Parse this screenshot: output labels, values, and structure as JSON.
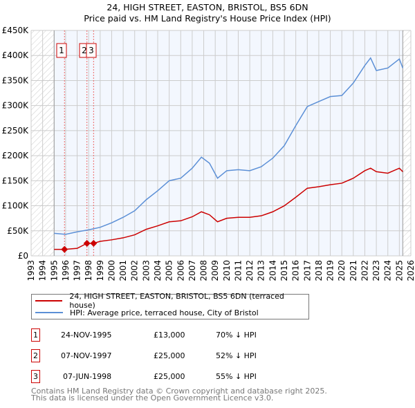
{
  "title": "24, HIGH STREET, EASTON, BRISTOL, BS5 6DN",
  "subtitle": "Price paid vs. HM Land Registry's House Price Index (HPI)",
  "chart_data": {
    "type": "line",
    "title": "24, HIGH STREET, EASTON, BRISTOL, BS5 6DN",
    "subtitle": "Price paid vs. HM Land Registry's House Price Index (HPI)",
    "xlim": [
      1993,
      2026
    ],
    "ylim": [
      0,
      450000
    ],
    "x_ticks": [
      "1993",
      "1994",
      "1995",
      "1996",
      "1997",
      "1998",
      "1999",
      "2000",
      "2001",
      "2002",
      "2003",
      "2004",
      "2005",
      "2006",
      "2007",
      "2008",
      "2009",
      "2010",
      "2011",
      "2012",
      "2013",
      "2014",
      "2015",
      "2016",
      "2017",
      "2018",
      "2019",
      "2020",
      "2021",
      "2022",
      "2023",
      "2024",
      "2025",
      "2026"
    ],
    "y_ticks": [
      "£0",
      "£50K",
      "£100K",
      "£150K",
      "£200K",
      "£250K",
      "£300K",
      "£350K",
      "£400K",
      "£450K"
    ],
    "grid": true,
    "series": [
      {
        "name": "24, HIGH STREET, EASTON, BRISTOL, BS5 6DN (terraced house)",
        "color": "#cc0000",
        "x": [
          1995,
          1995.9,
          1997,
          1997.85,
          1998.43,
          1999,
          2000,
          2001,
          2002,
          2003,
          2004,
          2005,
          2006,
          2007,
          2007.8,
          2008.5,
          2009.2,
          2010,
          2011,
          2012,
          2013,
          2014,
          2015,
          2016,
          2017,
          2018,
          2019,
          2020,
          2021,
          2022,
          2022.5,
          2023,
          2024,
          2025,
          2025.3
        ],
        "y": [
          13000,
          13000,
          15000,
          25000,
          25000,
          29000,
          32000,
          36000,
          42000,
          53000,
          60000,
          68000,
          70000,
          78000,
          88000,
          82000,
          68000,
          75000,
          77000,
          77000,
          80000,
          88000,
          100000,
          117000,
          135000,
          138000,
          142000,
          145000,
          155000,
          170000,
          175000,
          168000,
          165000,
          175000,
          168000
        ]
      },
      {
        "name": "HPI: Average price, terraced house, City of Bristol",
        "color": "#5b8fd6",
        "x": [
          1995,
          1996,
          1997,
          1998,
          1999,
          2000,
          2001,
          2002,
          2003,
          2004,
          2005,
          2006,
          2007,
          2007.8,
          2008.5,
          2009.2,
          2010,
          2011,
          2012,
          2013,
          2014,
          2015,
          2016,
          2017,
          2018,
          2019,
          2020,
          2021,
          2022,
          2022.5,
          2023,
          2024,
          2025,
          2025.3
        ],
        "y": [
          45000,
          43000,
          48000,
          52000,
          57000,
          66000,
          77000,
          90000,
          112000,
          130000,
          150000,
          155000,
          175000,
          197000,
          185000,
          155000,
          170000,
          172000,
          170000,
          178000,
          195000,
          220000,
          260000,
          298000,
          308000,
          318000,
          320000,
          345000,
          380000,
          395000,
          370000,
          375000,
          393000,
          375000
        ]
      }
    ],
    "sales": [
      {
        "label": "1",
        "x": 1995.9,
        "y": 13000
      },
      {
        "label": "2",
        "x": 1997.85,
        "y": 25000
      },
      {
        "label": "3",
        "x": 1998.43,
        "y": 25000
      }
    ],
    "legend_placement": "bottom"
  },
  "legend": [
    "24, HIGH STREET, EASTON, BRISTOL, BS5 6DN (terraced house)",
    "HPI: Average price, terraced house, City of Bristol"
  ],
  "table": [
    {
      "n": "1",
      "date": "24-NOV-1995",
      "price": "£13,000",
      "hpi": "70% ↓ HPI"
    },
    {
      "n": "2",
      "date": "07-NOV-1997",
      "price": "£25,000",
      "hpi": "52% ↓ HPI"
    },
    {
      "n": "3",
      "date": "07-JUN-1998",
      "price": "£25,000",
      "hpi": "55% ↓ HPI"
    }
  ],
  "footer": [
    "Contains HM Land Registry data © Crown copyright and database right 2025.",
    "This data is licensed under the Open Government Licence v3.0."
  ]
}
